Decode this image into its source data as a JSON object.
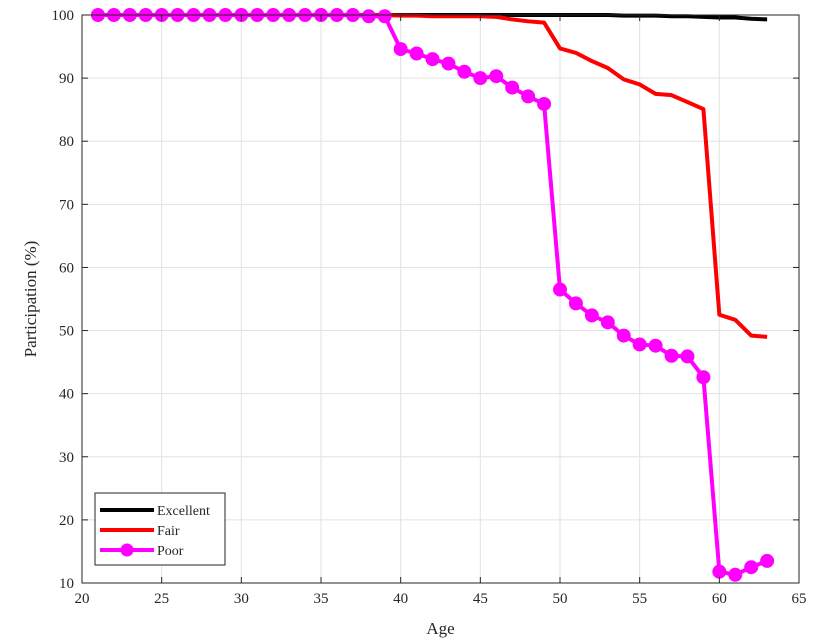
{
  "chart_data": {
    "type": "line",
    "title": "",
    "xlabel": "Age",
    "ylabel": "Participation (%)",
    "xlim": [
      20,
      65
    ],
    "ylim": [
      10,
      100
    ],
    "xticks": [
      20,
      25,
      30,
      35,
      40,
      45,
      50,
      55,
      60,
      65
    ],
    "yticks": [
      10,
      20,
      30,
      40,
      50,
      60,
      70,
      80,
      90,
      100
    ],
    "grid": true,
    "legend_position": "bottom-left",
    "x": [
      21,
      22,
      23,
      24,
      25,
      26,
      27,
      28,
      29,
      30,
      31,
      32,
      33,
      34,
      35,
      36,
      37,
      38,
      39,
      40,
      41,
      42,
      43,
      44,
      45,
      46,
      47,
      48,
      49,
      50,
      51,
      52,
      53,
      54,
      55,
      56,
      57,
      58,
      59,
      60,
      61,
      62,
      63
    ],
    "series": [
      {
        "name": "Excellent",
        "color": "#000000",
        "marker": false,
        "values": [
          100,
          100,
          100,
          100,
          100,
          100,
          100,
          100,
          100,
          100,
          100,
          100,
          100,
          100,
          100,
          100,
          100,
          100,
          100,
          100,
          100,
          100,
          100,
          100,
          100,
          100,
          100,
          100,
          100,
          100,
          100,
          100,
          100,
          99.9,
          99.9,
          99.9,
          99.8,
          99.8,
          99.7,
          99.6,
          99.6,
          99.4,
          99.3
        ]
      },
      {
        "name": "Fair",
        "color": "#ff0000",
        "marker": false,
        "values": [
          100,
          100,
          100,
          100,
          100,
          100,
          100,
          100,
          100,
          100,
          100,
          100,
          100,
          100,
          100,
          100,
          100,
          100,
          100,
          99.9,
          99.9,
          99.8,
          99.8,
          99.8,
          99.8,
          99.7,
          99.3,
          99.0,
          98.8,
          94.7,
          94.0,
          92.7,
          91.6,
          89.8,
          89.0,
          87.5,
          87.3,
          86.2,
          85.1,
          52.5,
          51.7,
          49.2,
          49.0
        ]
      },
      {
        "name": "Poor",
        "color": "#ff00ff",
        "marker": true,
        "values": [
          100,
          100,
          100,
          100,
          100,
          100,
          100,
          100,
          100,
          100,
          100,
          100,
          100,
          100,
          100,
          100,
          100,
          99.8,
          99.8,
          94.6,
          93.9,
          93.0,
          92.3,
          91.0,
          90.0,
          90.3,
          88.5,
          87.1,
          85.9,
          56.5,
          54.3,
          52.4,
          51.3,
          49.2,
          47.8,
          47.6,
          46.0,
          45.9,
          42.6,
          11.8,
          11.3,
          12.5,
          13.5
        ]
      }
    ]
  }
}
